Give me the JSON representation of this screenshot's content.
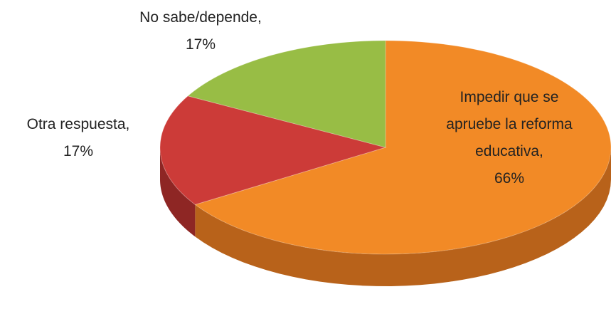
{
  "chart_data": {
    "type": "pie3d",
    "categories": [
      "Impedir que se apruebe la reforma educativa",
      "Otra respuesta",
      "No sabe/depende"
    ],
    "values": [
      66,
      17,
      17
    ],
    "value_labels": [
      "66%",
      "17%",
      "17%"
    ],
    "label_separator": ",",
    "colors": [
      "#f28a26",
      "#cc3b38",
      "#98bd45"
    ],
    "side_colors": [
      "#b8621a",
      "#8e2624",
      "#6a8a2c"
    ]
  }
}
